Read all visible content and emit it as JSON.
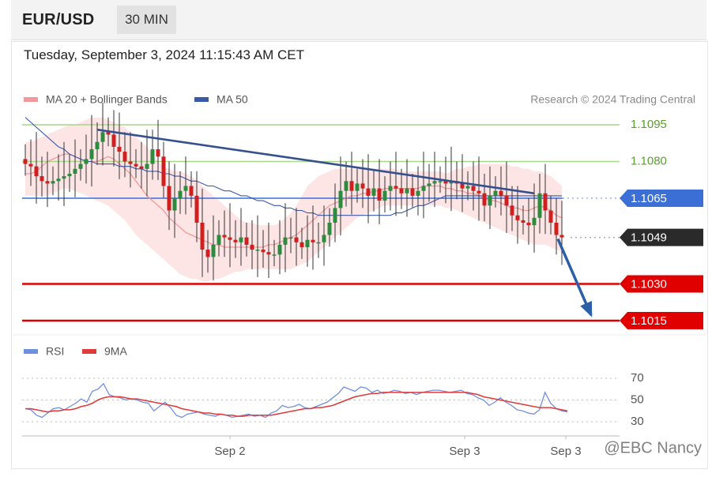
{
  "header": {
    "symbol": "EUR/USD",
    "timeframe": "30 MIN"
  },
  "datetime": "Tuesday, September 3, 2024 11:15:43 AM CET",
  "watermark": "@EBC Nancy",
  "colors": {
    "bull_candle": "#2e8b3d",
    "bear_candle": "#d01f1f",
    "band_fill": "#fde0e0",
    "ma20": "#f29a9a",
    "ma50": "#3a5aa8",
    "trendline": "#34508e",
    "resistance": "#a8d68a",
    "pivot": "#3b6fd6",
    "support": "#e00000",
    "arrow": "#2b5fa8",
    "rsi": "#6f8fe0",
    "rsi_ma": "#e03a3a"
  },
  "chart_data": [
    {
      "type": "candlestick",
      "legend": [
        {
          "name": "MA 20 + Bollinger Bands",
          "color": "#f29a9a"
        },
        {
          "name": "MA 50",
          "color": "#3a5aa8"
        }
      ],
      "legend_position": "top-left",
      "attribution": "Research © 2024 Trading Central",
      "x_ticks": [
        "Sep 2",
        "Sep 3",
        "Sep 3"
      ],
      "ylim": [
        1.1003,
        1.1104
      ],
      "levels": [
        {
          "value": 1.1095,
          "label": "1.1095",
          "kind": "resistance"
        },
        {
          "value": 1.108,
          "label": "1.1080",
          "kind": "resistance"
        },
        {
          "value": 1.1065,
          "label": "1.1065",
          "kind": "pivot"
        },
        {
          "value": 1.1049,
          "label": "1.1049",
          "kind": "last"
        },
        {
          "value": 1.103,
          "label": "1.1030",
          "kind": "support"
        },
        {
          "value": 1.1015,
          "label": "1.1015",
          "kind": "support"
        }
      ],
      "close": [
        1.1079,
        1.1078,
        1.1074,
        1.1072,
        1.1071,
        1.1072,
        1.1073,
        1.1074,
        1.1075,
        1.1077,
        1.1079,
        1.1081,
        1.1085,
        1.1088,
        1.1092,
        1.1091,
        1.1086,
        1.1084,
        1.108,
        1.1079,
        1.1078,
        1.1077,
        1.1079,
        1.1085,
        1.1082,
        1.107,
        1.106,
        1.1065,
        1.1068,
        1.107,
        1.1066,
        1.1055,
        1.1044,
        1.1041,
        1.1046,
        1.105,
        1.1049,
        1.1048,
        1.1047,
        1.1049,
        1.1046,
        1.1044,
        1.1044,
        1.1043,
        1.1042,
        1.1042,
        1.1046,
        1.1049,
        1.1049,
        1.1047,
        1.1045,
        1.1048,
        1.1047,
        1.1047,
        1.105,
        1.1055,
        1.1061,
        1.1068,
        1.1072,
        1.1068,
        1.1071,
        1.1069,
        1.1066,
        1.1069,
        1.1064,
        1.1068,
        1.107,
        1.1069,
        1.1067,
        1.1069,
        1.1066,
        1.1068,
        1.107,
        1.1071,
        1.1072,
        1.1072,
        1.1071,
        1.1072,
        1.1071,
        1.1069,
        1.107,
        1.1068,
        1.1067,
        1.1062,
        1.1066,
        1.1068,
        1.1066,
        1.1062,
        1.1058,
        1.1056,
        1.1055,
        1.1054,
        1.1057,
        1.1067,
        1.106,
        1.1055,
        1.105,
        1.1049
      ],
      "ma20": [
        1.1075,
        1.1075,
        1.1076,
        1.1078,
        1.108,
        1.1081,
        1.1082,
        1.1083,
        1.1083,
        1.1082,
        1.1081,
        1.108,
        1.108,
        1.108,
        1.1081,
        1.1082,
        1.1081,
        1.1079,
        1.1077,
        1.1075,
        1.1072,
        1.1069,
        1.1066,
        1.1064,
        1.1062,
        1.106,
        1.1057,
        1.1055,
        1.1053,
        1.1051,
        1.105,
        1.1049,
        1.1048,
        1.1047,
        1.1046,
        1.1046,
        1.1045,
        1.1045,
        1.1045,
        1.1045,
        1.1045,
        1.1045,
        1.1045,
        1.1045,
        1.1046,
        1.1046,
        1.1047,
        1.1048,
        1.1049,
        1.105,
        1.1052,
        1.1054,
        1.1056,
        1.1058,
        1.106,
        1.1062,
        1.1063,
        1.1064,
        1.1065,
        1.1066,
        1.1066,
        1.1067,
        1.1067,
        1.1068,
        1.1068,
        1.1069,
        1.1069,
        1.1069,
        1.1069,
        1.1069,
        1.1069,
        1.1069,
        1.107,
        1.107,
        1.107,
        1.107,
        1.1069,
        1.1069,
        1.1068,
        1.1068,
        1.1067,
        1.1067,
        1.1066,
        1.1065,
        1.1064,
        1.1064,
        1.1063,
        1.1062,
        1.1061,
        1.1061,
        1.106,
        1.106,
        1.1061,
        1.1062,
        1.1061,
        1.106,
        1.1058,
        1.1057
      ],
      "bb_upper": [
        1.1088,
        1.1088,
        1.1089,
        1.109,
        1.1091,
        1.1092,
        1.1093,
        1.1094,
        1.1095,
        1.1095,
        1.1096,
        1.1097,
        1.1098,
        1.1098,
        1.1098,
        1.1097,
        1.1096,
        1.1095,
        1.1094,
        1.1092,
        1.109,
        1.1088,
        1.1086,
        1.1083,
        1.108,
        1.1078,
        1.1077,
        1.1076,
        1.1076,
        1.1075,
        1.1074,
        1.1072,
        1.107,
        1.1068,
        1.1066,
        1.1064,
        1.1062,
        1.106,
        1.1058,
        1.1056,
        1.1055,
        1.1055,
        1.1054,
        1.1054,
        1.1054,
        1.1054,
        1.1055,
        1.1057,
        1.1059,
        1.1062,
        1.1066,
        1.107,
        1.1072,
        1.1074,
        1.1075,
        1.1076,
        1.1077,
        1.1077,
        1.1077,
        1.1077,
        1.1077,
        1.1077,
        1.1077,
        1.1077,
        1.1077,
        1.1077,
        1.1077,
        1.1077,
        1.1076,
        1.1076,
        1.1076,
        1.1076,
        1.1076,
        1.1076,
        1.1076,
        1.1076,
        1.1075,
        1.1076,
        1.1077,
        1.1077,
        1.1078,
        1.1078,
        1.1079,
        1.1079,
        1.1079,
        1.1079,
        1.1079,
        1.1079,
        1.1078,
        1.1078,
        1.1077,
        1.1077,
        1.1076,
        1.1076,
        1.1075,
        1.1074,
        1.1072,
        1.107
      ],
      "bb_lower": [
        1.1066,
        1.1066,
        1.1066,
        1.1066,
        1.1066,
        1.1067,
        1.1068,
        1.1069,
        1.1069,
        1.1068,
        1.1067,
        1.1066,
        1.1065,
        1.1064,
        1.1063,
        1.1062,
        1.106,
        1.1058,
        1.1056,
        1.1053,
        1.105,
        1.1048,
        1.1046,
        1.1044,
        1.1042,
        1.104,
        1.1038,
        1.1036,
        1.1034,
        1.1033,
        1.1032,
        1.1032,
        1.1031,
        1.1031,
        1.1032,
        1.1032,
        1.1033,
        1.1034,
        1.1035,
        1.1035,
        1.1036,
        1.1036,
        1.1036,
        1.1036,
        1.1036,
        1.1036,
        1.1036,
        1.1036,
        1.1036,
        1.1037,
        1.1038,
        1.1039,
        1.1041,
        1.1043,
        1.1045,
        1.1047,
        1.1049,
        1.1051,
        1.1053,
        1.1055,
        1.1057,
        1.1058,
        1.1059,
        1.106,
        1.1061,
        1.1062,
        1.1062,
        1.1062,
        1.1062,
        1.1062,
        1.1062,
        1.1062,
        1.1062,
        1.1062,
        1.1062,
        1.1062,
        1.1061,
        1.1061,
        1.106,
        1.1059,
        1.1058,
        1.1057,
        1.1056,
        1.1055,
        1.1054,
        1.1053,
        1.1052,
        1.1051,
        1.105,
        1.1049,
        1.1048,
        1.1047,
        1.1046,
        1.1046,
        1.1046,
        1.1045,
        1.1044,
        1.1043
      ],
      "ma50": [
        1.1098,
        1.1096,
        1.1094,
        1.1092,
        1.109,
        1.1088,
        1.1086,
        1.1085,
        1.1083,
        1.1082,
        1.1081,
        1.108,
        1.108,
        1.1079,
        1.1079,
        1.1079,
        1.1079,
        1.1078,
        1.1078,
        1.1078,
        1.1077,
        1.1077,
        1.1076,
        1.1076,
        1.1076,
        1.1075,
        1.1075,
        1.1074,
        1.1074,
        1.1073,
        1.1072,
        1.1072,
        1.1071,
        1.107,
        1.107,
        1.1069,
        1.1068,
        1.1068,
        1.1067,
        1.1066,
        1.1066,
        1.1065,
        1.1064,
        1.1064,
        1.1063,
        1.1062,
        1.1062,
        1.1061,
        1.1061,
        1.106,
        1.106,
        1.1059,
        1.1059,
        1.1058,
        1.1058,
        1.1058,
        1.1058,
        1.1058,
        1.1058,
        1.1058,
        1.1058,
        1.1058,
        1.1058,
        1.1058,
        1.1058,
        1.1058,
        1.1058,
        1.1059,
        1.1059,
        1.106,
        1.1061,
        1.1062,
        1.1062,
        1.1063,
        1.1064,
        1.1065,
        1.1066,
        1.1066,
        1.1066,
        1.1066,
        1.1066,
        1.1066,
        1.1066,
        1.1066,
        1.1066,
        1.1066,
        1.1066,
        1.1066,
        1.1066,
        1.1066,
        1.1066,
        1.1066,
        1.1066,
        1.1066,
        1.1066,
        1.1066,
        1.1066,
        1.1066
      ],
      "trendline": {
        "from": {
          "index": 13,
          "value": 1.1093
        },
        "to": {
          "index": 92,
          "value": 1.1067
        }
      },
      "projection": {
        "from": {
          "index": 96,
          "value": 1.1049
        },
        "to": {
          "index": 102,
          "value": 1.1016
        }
      }
    },
    {
      "type": "line",
      "legend": [
        {
          "name": "RSI",
          "color": "#6f8fe0"
        },
        {
          "name": "9MA",
          "color": "#e03a3a"
        }
      ],
      "y_ticks": [
        70,
        50,
        30
      ],
      "ylim": [
        26,
        76
      ],
      "series": [
        {
          "name": "RSI",
          "values": [
            42,
            41,
            36,
            34,
            38,
            42,
            43,
            41,
            44,
            47,
            51,
            48,
            58,
            60,
            65,
            55,
            53,
            52,
            50,
            51,
            50,
            48,
            47,
            40,
            44,
            48,
            43,
            36,
            34,
            37,
            38,
            39,
            37,
            36,
            35,
            37,
            36,
            34,
            35,
            36,
            37,
            35,
            36,
            34,
            38,
            40,
            45,
            43,
            44,
            46,
            43,
            42,
            44,
            46,
            48,
            52,
            56,
            62,
            60,
            58,
            62,
            61,
            57,
            59,
            56,
            57,
            59,
            58,
            56,
            57,
            55,
            57,
            58,
            59,
            59,
            58,
            57,
            58,
            59,
            56,
            55,
            52,
            50,
            45,
            48,
            52,
            48,
            45,
            41,
            40,
            38,
            37,
            41,
            57,
            47,
            42,
            40,
            39
          ]
        },
        {
          "name": "9MA",
          "values": [
            42,
            42,
            41,
            40,
            39,
            40,
            40,
            41,
            41,
            42,
            44,
            45,
            47,
            50,
            52,
            53,
            53,
            53,
            52,
            51,
            51,
            50,
            49,
            48,
            47,
            46,
            45,
            44,
            42,
            41,
            40,
            39,
            38,
            38,
            37,
            37,
            36,
            36,
            35,
            35,
            36,
            36,
            36,
            36,
            36,
            37,
            38,
            39,
            40,
            41,
            42,
            42,
            43,
            43,
            44,
            45,
            47,
            49,
            51,
            53,
            54,
            55,
            56,
            56,
            57,
            57,
            57,
            57,
            57,
            57,
            57,
            57,
            57,
            57,
            57,
            57,
            57,
            57,
            57,
            57,
            56,
            55,
            53,
            52,
            51,
            50,
            49,
            48,
            47,
            46,
            45,
            44,
            43,
            43,
            43,
            42,
            41,
            40
          ]
        }
      ]
    }
  ]
}
